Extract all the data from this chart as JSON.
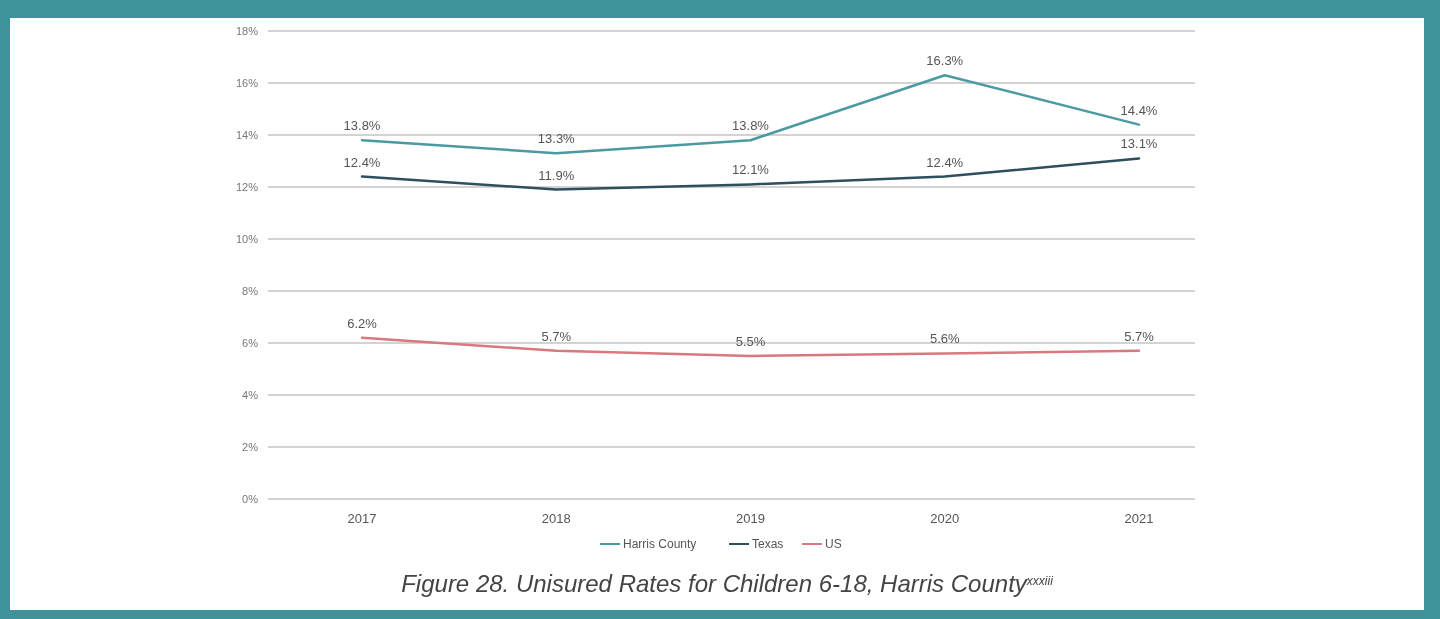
{
  "chart_data": {
    "type": "line",
    "title": "Figure 28. Unisured Rates for Children 6-18, Harris County$^{xxxiii}$",
    "categories": [
      "2017",
      "2018",
      "2019",
      "2020",
      "2021"
    ],
    "series": [
      {
        "name": "Harris County",
        "color": "#4b9aa1",
        "values": [
          13.8,
          13.3,
          13.8,
          16.3,
          14.4
        ],
        "value_labels": [
          "13.8%",
          "13.3%",
          "13.8%",
          "16.3%",
          "14.4%"
        ]
      },
      {
        "name": "Texas",
        "color": "#2e4f5e",
        "values": [
          12.4,
          11.9,
          12.1,
          12.4,
          13.1
        ],
        "value_labels": [
          "12.4%",
          "11.9%",
          "12.1%",
          "12.4%",
          "13.1%"
        ]
      },
      {
        "name": "US",
        "color": "#d9797f",
        "values": [
          6.2,
          5.7,
          5.5,
          5.6,
          5.7
        ],
        "value_labels": [
          "6.2%",
          "5.7%",
          "5.5%",
          "5.6%",
          "5.7%"
        ]
      }
    ],
    "ylim": [
      0,
      18
    ],
    "yticks": [
      {
        "value": 0,
        "label": "0%"
      },
      {
        "value": 2,
        "label": "2%"
      },
      {
        "value": 4,
        "label": "4%"
      },
      {
        "value": 6,
        "label": "6%"
      },
      {
        "value": 8,
        "label": "8%"
      },
      {
        "value": 10,
        "label": "10%"
      },
      {
        "value": 12,
        "label": "12%"
      },
      {
        "value": 14,
        "label": "14%"
      },
      {
        "value": 16,
        "label": "16%"
      },
      {
        "value": 18,
        "label": "18%"
      }
    ],
    "grid": "y",
    "legend": "bottom"
  }
}
